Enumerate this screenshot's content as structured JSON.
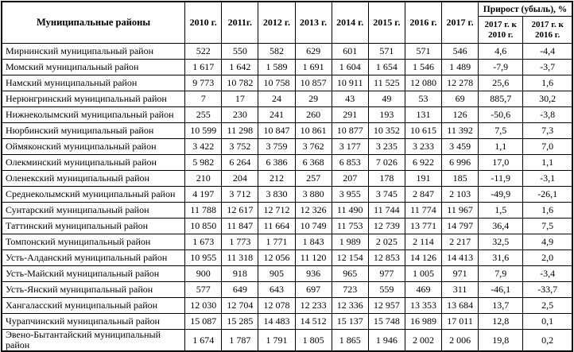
{
  "table": {
    "header": {
      "district": "Муниципальные районы",
      "years": [
        "2010 г.",
        "2011г.",
        "2012 г.",
        "2013 г.",
        "2014 г.",
        "2015 г.",
        "2016 г.",
        "2017 г."
      ],
      "growth_group": "Прирост (убыль), %",
      "growth_sub": [
        "2017 г. к 2010 г.",
        "2017 г. к 2016 г."
      ]
    },
    "rows": [
      {
        "name": "Мирнинский муниципальный район",
        "values": [
          "522",
          "550",
          "582",
          "629",
          "601",
          "571",
          "571",
          "546"
        ],
        "growth": [
          "4,6",
          "-4,4"
        ]
      },
      {
        "name": "Момский муниципальный район",
        "values": [
          "1 617",
          "1 642",
          "1 589",
          "1 691",
          "1 604",
          "1 654",
          "1 546",
          "1 489"
        ],
        "growth": [
          "-7,9",
          "-3,7"
        ]
      },
      {
        "name": "Намский муниципальный район",
        "values": [
          "9 773",
          "10 782",
          "10 758",
          "10 857",
          "10 911",
          "11 525",
          "12 080",
          "12 278"
        ],
        "growth": [
          "25,6",
          "1,6"
        ]
      },
      {
        "name": "Нерюнгринский муниципальный район",
        "values": [
          "7",
          "17",
          "24",
          "29",
          "43",
          "49",
          "53",
          "69"
        ],
        "growth": [
          "885,7",
          "30,2"
        ]
      },
      {
        "name": "Нижнеколымский муниципальный район",
        "values": [
          "255",
          "230",
          "241",
          "260",
          "291",
          "193",
          "131",
          "126"
        ],
        "growth": [
          "-50,6",
          "-3,8"
        ]
      },
      {
        "name": "Нюрбинский муниципальный район",
        "values": [
          "10 599",
          "11 298",
          "10 847",
          "10 861",
          "10 877",
          "10 352",
          "10 615",
          "11 392"
        ],
        "growth": [
          "7,5",
          "7,3"
        ]
      },
      {
        "name": "Оймяконский муниципальный район",
        "values": [
          "3 422",
          "3 752",
          "3 759",
          "3 762",
          "3 177",
          "3 235",
          "3 233",
          "3 459"
        ],
        "growth": [
          "1,1",
          "7,0"
        ]
      },
      {
        "name": "Олекминский муниципальный район",
        "values": [
          "5 982",
          "6 264",
          "6 386",
          "6 368",
          "6 853",
          "7 026",
          "6 922",
          "6 996"
        ],
        "growth": [
          "17,0",
          "1,1"
        ]
      },
      {
        "name": "Оленекский муниципальный район",
        "values": [
          "210",
          "204",
          "212",
          "257",
          "207",
          "178",
          "191",
          "185"
        ],
        "growth": [
          "-11,9",
          "-3,1"
        ]
      },
      {
        "name": "Среднеколымский муниципальный район",
        "values": [
          "4 197",
          "3 712",
          "3 830",
          "3 880",
          "3 955",
          "3 745",
          "2 847",
          "2 103"
        ],
        "growth": [
          "-49,9",
          "-26,1"
        ]
      },
      {
        "name": "Сунтарский муниципальный район",
        "values": [
          "11 788",
          "12 617",
          "12 712",
          "12 326",
          "11 490",
          "11 744",
          "11 774",
          "11 967"
        ],
        "growth": [
          "1,5",
          "1,6"
        ]
      },
      {
        "name": "Таттинский муниципальный район",
        "values": [
          "10 850",
          "11 847",
          "11 664",
          "10 749",
          "11 753",
          "12 739",
          "13 771",
          "14 797"
        ],
        "growth": [
          "36,4",
          "7,5"
        ]
      },
      {
        "name": "Томпонский муниципальный район",
        "values": [
          "1 673",
          "1 773",
          "1 771",
          "1 843",
          "1 989",
          "2 025",
          "2 114",
          "2 217"
        ],
        "growth": [
          "32,5",
          "4,9"
        ]
      },
      {
        "name": "Усть-Алданский муниципальный район",
        "values": [
          "10 955",
          "11 318",
          "12 056",
          "11 120",
          "12 154",
          "12 853",
          "14 126",
          "14 413"
        ],
        "growth": [
          "31,6",
          "2,0"
        ]
      },
      {
        "name": "Усть-Майский муниципальный район",
        "values": [
          "900",
          "918",
          "905",
          "936",
          "965",
          "977",
          "1 005",
          "971"
        ],
        "growth": [
          "7,9",
          "-3,4"
        ]
      },
      {
        "name": "Усть-Янский муниципальный район",
        "values": [
          "577",
          "649",
          "643",
          "697",
          "723",
          "559",
          "469",
          "311"
        ],
        "growth": [
          "-46,1",
          "-33,7"
        ]
      },
      {
        "name": "Хангаласский муниципальный район",
        "values": [
          "12 030",
          "12 704",
          "12 078",
          "12 233",
          "12 336",
          "12 957",
          "13 353",
          "13 684"
        ],
        "growth": [
          "13,7",
          "2,5"
        ]
      },
      {
        "name": "Чурапчинский муниципальный район",
        "values": [
          "15 087",
          "15 285",
          "14 483",
          "14 512",
          "15 137",
          "15 748",
          "16 989",
          "17 011"
        ],
        "growth": [
          "12,8",
          "0,1"
        ]
      },
      {
        "name": "Эвено-Бытантайский муниципальный район",
        "values": [
          "1 674",
          "1 787",
          "1 791",
          "1 805",
          "1 865",
          "1 946",
          "2 002",
          "2 006"
        ],
        "growth": [
          "19,8",
          "0,2"
        ]
      }
    ]
  }
}
